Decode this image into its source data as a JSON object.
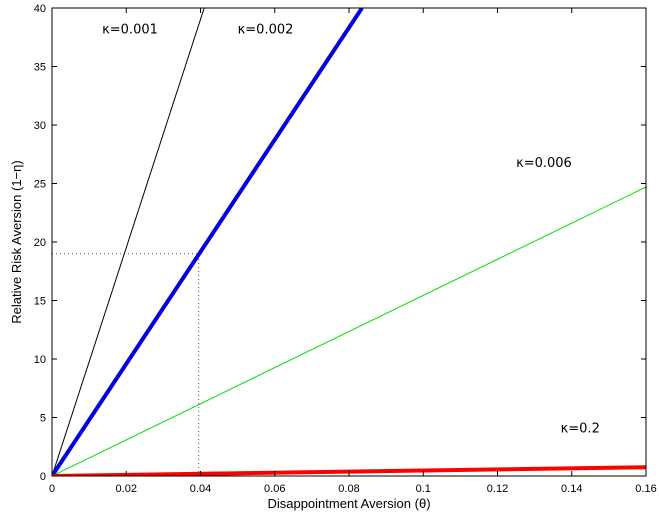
{
  "chart_data": {
    "type": "line",
    "title": "",
    "xlabel": "Disappointment Aversion (θ)",
    "ylabel": "Relative Risk Aversion (1−η)",
    "xlim": [
      0,
      0.16
    ],
    "ylim": [
      0,
      40
    ],
    "x_ticks": [
      0,
      0.02,
      0.04,
      0.06,
      0.08,
      0.1,
      0.12,
      0.14,
      0.16
    ],
    "x_tick_labels": [
      "0",
      "0.02",
      "0.04",
      "0.06",
      "0.08",
      "0.1",
      "0.12",
      "0.14",
      "0.16"
    ],
    "y_ticks": [
      0,
      5,
      10,
      15,
      20,
      25,
      30,
      35,
      40
    ],
    "y_tick_labels": [
      "0",
      "5",
      "10",
      "15",
      "20",
      "25",
      "30",
      "35",
      "40"
    ],
    "grid": false,
    "legend": "none",
    "series": [
      {
        "x": [
          0,
          0.041
        ],
        "y": [
          0,
          40
        ],
        "color": "#000000",
        "width": 1
      },
      {
        "x": [
          0,
          0.0835
        ],
        "y": [
          0,
          40
        ],
        "color": "#0000e0",
        "width": 4
      },
      {
        "x": [
          0,
          0.16
        ],
        "y": [
          0,
          24.7
        ],
        "color": "#00e000",
        "width": 1
      },
      {
        "x": [
          0,
          0.16
        ],
        "y": [
          0,
          0.75
        ],
        "color": "#ff0000",
        "width": 4
      }
    ],
    "annotations": [
      {
        "text": "κ=0.001",
        "x": 0.0135,
        "y": 37.8
      },
      {
        "text": "κ=0.002",
        "x": 0.05,
        "y": 37.8
      },
      {
        "text": "κ=0.006",
        "x": 0.125,
        "y": 26.4
      },
      {
        "text": "κ=0.2",
        "x": 0.137,
        "y": 3.7
      }
    ],
    "reference_lines": [
      {
        "x": [
          0,
          0.0395
        ],
        "y": [
          19,
          19
        ],
        "color": "#555555",
        "dash": "1,3"
      },
      {
        "x": [
          0.0395,
          0.0395
        ],
        "y": [
          0,
          19
        ],
        "color": "#555555",
        "dash": "1,3"
      }
    ]
  }
}
